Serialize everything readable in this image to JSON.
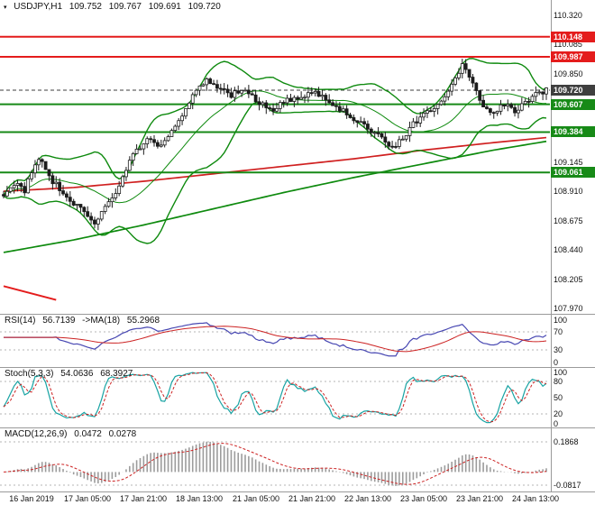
{
  "chart_data": {
    "type": "candlestick",
    "title": "USDJPY,H1",
    "instrument": "USDJPY",
    "timeframe": "H1",
    "header": {
      "marker": "▾",
      "symbol": "USDJPY,H1",
      "open": "109.752",
      "high": "109.767",
      "low": "109.691",
      "close": "109.720"
    },
    "y_axis": {
      "ticks": [
        110.32,
        110.085,
        109.85,
        109.145,
        108.91,
        108.675,
        108.44,
        108.205,
        107.97
      ],
      "range": [
        107.95,
        110.37
      ]
    },
    "x_axis": {
      "labels": [
        "16 Jan 2019",
        "17 Jan 05:00",
        "17 Jan 21:00",
        "18 Jan 13:00",
        "21 Jan 05:00",
        "21 Jan 21:00",
        "22 Jan 13:00",
        "23 Jan 05:00",
        "23 Jan 21:00",
        "24 Jan 13:00"
      ],
      "label_bars": [
        8,
        24,
        40,
        56,
        72,
        88,
        104,
        120,
        136,
        152
      ]
    },
    "bars_total": 156,
    "price_waypoints": [
      [
        0,
        108.88
      ],
      [
        3,
        108.97
      ],
      [
        6,
        108.92
      ],
      [
        9,
        109.13
      ],
      [
        11,
        109.16
      ],
      [
        14,
        108.99
      ],
      [
        18,
        108.87
      ],
      [
        22,
        108.76
      ],
      [
        26,
        108.66
      ],
      [
        29,
        108.8
      ],
      [
        33,
        108.95
      ],
      [
        37,
        109.2
      ],
      [
        41,
        109.33
      ],
      [
        44,
        109.27
      ],
      [
        48,
        109.38
      ],
      [
        52,
        109.55
      ],
      [
        55,
        109.72
      ],
      [
        58,
        109.8
      ],
      [
        61,
        109.73
      ],
      [
        65,
        109.68
      ],
      [
        69,
        109.74
      ],
      [
        73,
        109.62
      ],
      [
        77,
        109.57
      ],
      [
        81,
        109.64
      ],
      [
        85,
        109.67
      ],
      [
        89,
        109.71
      ],
      [
        93,
        109.62
      ],
      [
        97,
        109.55
      ],
      [
        101,
        109.47
      ],
      [
        105,
        109.4
      ],
      [
        108,
        109.33
      ],
      [
        111,
        109.27
      ],
      [
        114,
        109.33
      ],
      [
        117,
        109.45
      ],
      [
        120,
        109.52
      ],
      [
        123,
        109.58
      ],
      [
        126,
        109.66
      ],
      [
        129,
        109.82
      ],
      [
        131,
        109.93
      ],
      [
        133,
        109.84
      ],
      [
        135,
        109.7
      ],
      [
        137,
        109.58
      ],
      [
        140,
        109.52
      ],
      [
        143,
        109.61
      ],
      [
        146,
        109.56
      ],
      [
        149,
        109.62
      ],
      [
        152,
        109.68
      ],
      [
        155,
        109.72
      ]
    ],
    "levels": [
      {
        "price": 110.148,
        "label": "110.148",
        "type": "resistance",
        "color": "#e41c1c",
        "style": "solid"
      },
      {
        "price": 109.987,
        "label": "109.987",
        "type": "resistance",
        "color": "#e41c1c",
        "style": "solid"
      },
      {
        "price": 109.72,
        "label": "109.720",
        "type": "current-price",
        "color": "#3f3f3f",
        "style": "dashed"
      },
      {
        "price": 109.607,
        "label": "109.607",
        "type": "support",
        "color": "#178a17",
        "style": "solid"
      },
      {
        "price": 109.384,
        "label": "109.384",
        "type": "support",
        "color": "#178a17",
        "style": "solid"
      },
      {
        "price": 109.061,
        "label": "109.061",
        "type": "support",
        "color": "#178a17",
        "style": "solid"
      }
    ],
    "overlays": {
      "bollinger": {
        "period": 20,
        "deviation": 2,
        "color": "#0e8a0e"
      },
      "ma_red": {
        "color": "#d02020",
        "points": [
          [
            0,
            108.91
          ],
          [
            20,
            108.94
          ],
          [
            40,
            108.99
          ],
          [
            60,
            109.05
          ],
          [
            80,
            109.11
          ],
          [
            100,
            109.17
          ],
          [
            120,
            109.24
          ],
          [
            140,
            109.3
          ],
          [
            155,
            109.34
          ]
        ]
      },
      "ma_green": {
        "color": "#0e8a0e",
        "points": [
          [
            0,
            108.42
          ],
          [
            20,
            108.52
          ],
          [
            40,
            108.64
          ],
          [
            60,
            108.77
          ],
          [
            80,
            108.9
          ],
          [
            100,
            109.02
          ],
          [
            120,
            109.13
          ],
          [
            140,
            109.24
          ],
          [
            155,
            109.31
          ]
        ]
      },
      "trendline": {
        "color": "#e41c1c",
        "points": [
          [
            0,
            108.15
          ],
          [
            15,
            108.04
          ]
        ]
      }
    },
    "indicators": {
      "rsi": {
        "label": "RSI(14)",
        "value": "56.7139",
        "ma_label": "->MA(18)",
        "ma_value": "55.2968",
        "period": 14,
        "ma_period": 18,
        "scale_labels": [
          100,
          70,
          30,
          0
        ],
        "dashed_levels": [
          70,
          30
        ],
        "range": [
          0,
          100
        ],
        "color_main": "#4747b2",
        "color_signal": "#cc2222"
      },
      "stoch": {
        "label": "Stoch(5,3,3)",
        "value": "54.0636",
        "signal_value": "68.3927",
        "k_period": 5,
        "d_period": 3,
        "slowing": 3,
        "scale_labels": [
          100,
          80,
          50,
          20,
          0
        ],
        "dashed_levels": [
          80,
          20
        ],
        "range": [
          0,
          100
        ],
        "color_main": "#17a3a3",
        "color_signal": "#cc2222"
      },
      "macd": {
        "label": "MACD(12,26,9)",
        "value": "0.0472",
        "signal_value": "0.0278",
        "fast": 12,
        "slow": 26,
        "signal_period": 9,
        "scale_labels": [
          0.1868,
          -0.0817
        ],
        "range": [
          0.254,
          -0.104
        ],
        "color_hist": "#9c9c9c",
        "color_signal": "#cc2222"
      }
    },
    "colors": {
      "background": "#ffffff",
      "candle_up": "#ffffff",
      "candle_down": "#1c1c1c",
      "candle_outline": "#1c1c1c",
      "axis_text": "#111111",
      "separator": "#9a9a9a",
      "grid_dashed": "#b4b4b4"
    }
  }
}
